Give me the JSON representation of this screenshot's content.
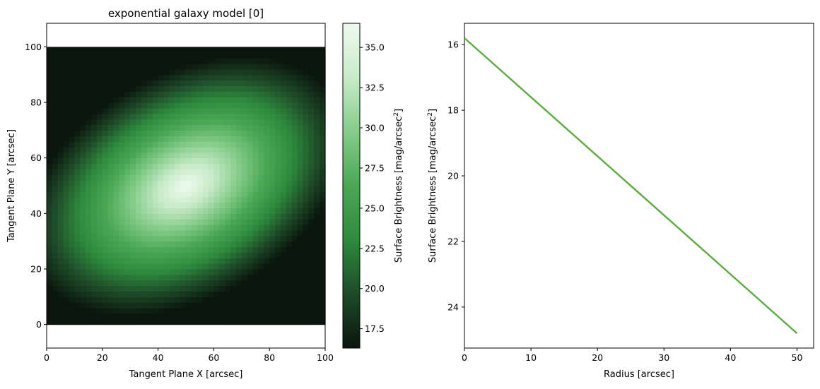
{
  "chart_data": [
    {
      "type": "heatmap",
      "title": "exponential galaxy model [0]",
      "xlabel": "Tangent Plane X [arcsec]",
      "ylabel": "Tangent Plane Y [arcsec]",
      "xlim": [
        0,
        100
      ],
      "ylim": [
        -8.5,
        108.5
      ],
      "image_extent": [
        0,
        100,
        0,
        100
      ],
      "xticks": [
        0,
        20,
        40,
        60,
        80,
        100
      ],
      "yticks": [
        0,
        20,
        40,
        60,
        80,
        100
      ],
      "model": {
        "center": [
          50,
          50
        ],
        "brightest_mag": 16.3,
        "faintest_mag": 36.5,
        "position_angle_deg": 30,
        "axis_ratio": 0.65
      },
      "colorbar": {
        "label": "Surface Brightness [mag/arcsec$^2$]",
        "label_main": "Surface Brightness [mag/arcsec",
        "label_sup": "2",
        "label_end": "]",
        "range": [
          36.5,
          16.3
        ],
        "inverted": true,
        "ticks": [
          "17.5",
          "20.0",
          "22.5",
          "25.0",
          "27.5",
          "30.0",
          "32.5",
          "35.0"
        ],
        "tick_values": [
          17.5,
          20.0,
          22.5,
          25.0,
          27.5,
          30.0,
          32.5,
          35.0
        ],
        "colormap": [
          "#0a160d",
          "#1e4a28",
          "#2e8b3e",
          "#4aa855",
          "#86cc8b",
          "#c8ebc8",
          "#f0faf0"
        ]
      }
    },
    {
      "type": "line",
      "title": "",
      "xlabel": "Radius [arcsec]",
      "ylabel_main": "Surface Brightness [mag/arcsec",
      "ylabel_sup": "2",
      "ylabel_end": "]",
      "xlim": [
        0,
        52.5
      ],
      "ylim": [
        25.25,
        15.35
      ],
      "y_inverted": true,
      "xticks": [
        "0",
        "10",
        "20",
        "30",
        "40",
        "50"
      ],
      "xtick_values": [
        0,
        10,
        20,
        30,
        40,
        50
      ],
      "yticks": [
        "16",
        "18",
        "20",
        "22",
        "24"
      ],
      "ytick_values": [
        16,
        18,
        20,
        22,
        24
      ],
      "color": "#5aad3e",
      "series": [
        {
          "x": [
            0,
            50
          ],
          "y": [
            15.8,
            24.8
          ]
        }
      ]
    }
  ]
}
